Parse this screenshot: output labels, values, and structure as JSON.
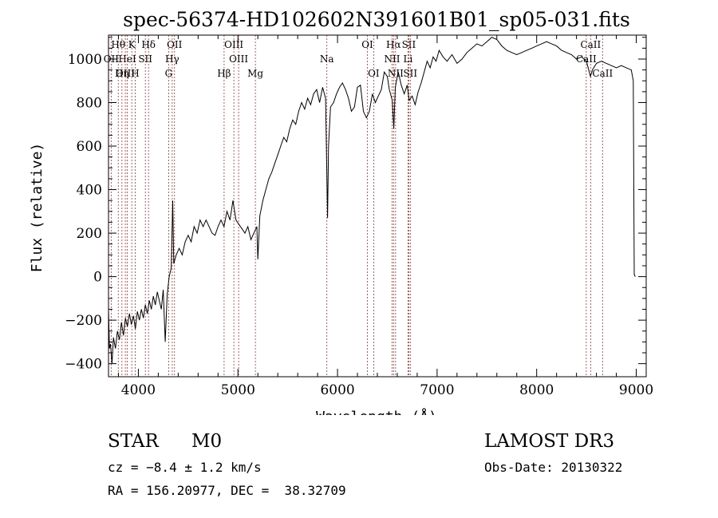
{
  "chart_data": {
    "type": "line",
    "title": "spec-56374-HD102602N391601B01_sp05-031.fits",
    "xlabel": "Wavelength (Å)",
    "ylabel": "Flux (relative)",
    "xlim": [
      3700,
      9100
    ],
    "ylim": [
      -460,
      1110
    ],
    "xticks": [
      4000,
      5000,
      6000,
      7000,
      8000,
      9000
    ],
    "yticks": [
      -400,
      -200,
      0,
      200,
      400,
      600,
      800,
      1000
    ],
    "series": [
      {
        "name": "spectrum",
        "points": [
          [
            3700,
            -150
          ],
          [
            3710,
            -330
          ],
          [
            3720,
            -310
          ],
          [
            3735,
            -400
          ],
          [
            3750,
            -280
          ],
          [
            3770,
            -330
          ],
          [
            3790,
            -250
          ],
          [
            3810,
            -290
          ],
          [
            3830,
            -210
          ],
          [
            3850,
            -270
          ],
          [
            3870,
            -190
          ],
          [
            3890,
            -230
          ],
          [
            3910,
            -170
          ],
          [
            3930,
            -220
          ],
          [
            3950,
            -180
          ],
          [
            3970,
            -240
          ],
          [
            3990,
            -160
          ],
          [
            4010,
            -200
          ],
          [
            4030,
            -150
          ],
          [
            4050,
            -190
          ],
          [
            4070,
            -130
          ],
          [
            4090,
            -170
          ],
          [
            4110,
            -110
          ],
          [
            4130,
            -150
          ],
          [
            4150,
            -90
          ],
          [
            4170,
            -130
          ],
          [
            4190,
            -70
          ],
          [
            4210,
            -110
          ],
          [
            4230,
            -150
          ],
          [
            4250,
            -60
          ],
          [
            4270,
            -300
          ],
          [
            4290,
            -80
          ],
          [
            4310,
            0
          ],
          [
            4330,
            40
          ],
          [
            4345,
            350
          ],
          [
            4355,
            60
          ],
          [
            4380,
            100
          ],
          [
            4410,
            130
          ],
          [
            4440,
            100
          ],
          [
            4470,
            160
          ],
          [
            4500,
            190
          ],
          [
            4530,
            160
          ],
          [
            4560,
            230
          ],
          [
            4590,
            200
          ],
          [
            4620,
            260
          ],
          [
            4650,
            230
          ],
          [
            4680,
            260
          ],
          [
            4710,
            230
          ],
          [
            4740,
            200
          ],
          [
            4770,
            190
          ],
          [
            4800,
            230
          ],
          [
            4830,
            260
          ],
          [
            4860,
            230
          ],
          [
            4890,
            300
          ],
          [
            4920,
            260
          ],
          [
            4950,
            350
          ],
          [
            4980,
            260
          ],
          [
            5010,
            240
          ],
          [
            5040,
            220
          ],
          [
            5070,
            200
          ],
          [
            5100,
            230
          ],
          [
            5130,
            170
          ],
          [
            5160,
            200
          ],
          [
            5190,
            230
          ],
          [
            5200,
            80
          ],
          [
            5220,
            280
          ],
          [
            5250,
            350
          ],
          [
            5280,
            400
          ],
          [
            5310,
            450
          ],
          [
            5340,
            480
          ],
          [
            5370,
            520
          ],
          [
            5400,
            560
          ],
          [
            5430,
            600
          ],
          [
            5460,
            640
          ],
          [
            5490,
            620
          ],
          [
            5520,
            680
          ],
          [
            5550,
            720
          ],
          [
            5580,
            700
          ],
          [
            5610,
            760
          ],
          [
            5640,
            800
          ],
          [
            5670,
            770
          ],
          [
            5700,
            820
          ],
          [
            5730,
            790
          ],
          [
            5760,
            840
          ],
          [
            5790,
            860
          ],
          [
            5820,
            800
          ],
          [
            5850,
            870
          ],
          [
            5880,
            820
          ],
          [
            5895,
            400
          ],
          [
            5900,
            270
          ],
          [
            5910,
            600
          ],
          [
            5930,
            780
          ],
          [
            5960,
            800
          ],
          [
            5990,
            840
          ],
          [
            6020,
            870
          ],
          [
            6050,
            890
          ],
          [
            6080,
            860
          ],
          [
            6110,
            820
          ],
          [
            6140,
            760
          ],
          [
            6170,
            780
          ],
          [
            6200,
            870
          ],
          [
            6230,
            880
          ],
          [
            6260,
            760
          ],
          [
            6290,
            730
          ],
          [
            6320,
            760
          ],
          [
            6350,
            840
          ],
          [
            6380,
            800
          ],
          [
            6410,
            830
          ],
          [
            6440,
            860
          ],
          [
            6470,
            940
          ],
          [
            6500,
            920
          ],
          [
            6520,
            860
          ],
          [
            6550,
            810
          ],
          [
            6565,
            680
          ],
          [
            6580,
            870
          ],
          [
            6610,
            940
          ],
          [
            6640,
            880
          ],
          [
            6670,
            840
          ],
          [
            6700,
            880
          ],
          [
            6720,
            810
          ],
          [
            6750,
            830
          ],
          [
            6780,
            790
          ],
          [
            6810,
            850
          ],
          [
            6840,
            890
          ],
          [
            6870,
            940
          ],
          [
            6900,
            990
          ],
          [
            6930,
            960
          ],
          [
            6960,
            1010
          ],
          [
            6990,
            990
          ],
          [
            7020,
            1040
          ],
          [
            7060,
            1010
          ],
          [
            7100,
            990
          ],
          [
            7150,
            1020
          ],
          [
            7200,
            980
          ],
          [
            7250,
            1000
          ],
          [
            7300,
            1030
          ],
          [
            7350,
            1050
          ],
          [
            7400,
            1070
          ],
          [
            7450,
            1060
          ],
          [
            7500,
            1080
          ],
          [
            7550,
            1100
          ],
          [
            7600,
            1090
          ],
          [
            7650,
            1060
          ],
          [
            7700,
            1040
          ],
          [
            7750,
            1030
          ],
          [
            7800,
            1020
          ],
          [
            7850,
            1030
          ],
          [
            7900,
            1040
          ],
          [
            7950,
            1050
          ],
          [
            8000,
            1060
          ],
          [
            8050,
            1070
          ],
          [
            8100,
            1080
          ],
          [
            8150,
            1070
          ],
          [
            8200,
            1060
          ],
          [
            8250,
            1040
          ],
          [
            8300,
            1030
          ],
          [
            8350,
            1020
          ],
          [
            8400,
            1000
          ],
          [
            8450,
            1010
          ],
          [
            8500,
            990
          ],
          [
            8540,
            920
          ],
          [
            8560,
            950
          ],
          [
            8600,
            980
          ],
          [
            8650,
            990
          ],
          [
            8700,
            980
          ],
          [
            8750,
            970
          ],
          [
            8800,
            960
          ],
          [
            8850,
            970
          ],
          [
            8900,
            960
          ],
          [
            8950,
            950
          ],
          [
            8970,
            900
          ],
          [
            8980,
            10
          ],
          [
            8990,
            0
          ]
        ]
      }
    ],
    "line_markers": [
      {
        "name": "Hθ",
        "wave": 3798,
        "row": 0
      },
      {
        "name": "K",
        "wave": 3934,
        "row": 0
      },
      {
        "name": "Hδ",
        "wave": 4102,
        "row": 0
      },
      {
        "name": "OII",
        "wave": 4363,
        "row": 0
      },
      {
        "name": "OIII",
        "wave": 4959,
        "row": 0
      },
      {
        "name": "OI",
        "wave": 6300,
        "row": 0
      },
      {
        "name": "Hα",
        "wave": 6563,
        "row": 0
      },
      {
        "name": "SII",
        "wave": 6716,
        "row": 0
      },
      {
        "name": "CaII",
        "wave": 8542,
        "row": 0
      },
      {
        "name": "OII",
        "wave": 3727,
        "row": 1
      },
      {
        "name": "HeI",
        "wave": 3889,
        "row": 1
      },
      {
        "name": "SII",
        "wave": 4070,
        "row": 1
      },
      {
        "name": "Hγ",
        "wave": 4340,
        "row": 1
      },
      {
        "name": "OIII",
        "wave": 5007,
        "row": 1
      },
      {
        "name": "Na",
        "wave": 5893,
        "row": 1
      },
      {
        "name": "NII",
        "wave": 6548,
        "row": 1
      },
      {
        "name": "Li",
        "wave": 6708,
        "row": 1
      },
      {
        "name": "CaII",
        "wave": 8498,
        "row": 1
      },
      {
        "name": "OIII",
        "wave": 3869,
        "row": 2
      },
      {
        "name": "Hη",
        "wave": 3835,
        "row": 2
      },
      {
        "name": "H",
        "wave": 3968,
        "row": 2
      },
      {
        "name": "G",
        "wave": 4304,
        "row": 2
      },
      {
        "name": "Hβ",
        "wave": 4861,
        "row": 2
      },
      {
        "name": "Mg",
        "wave": 5175,
        "row": 2
      },
      {
        "name": "OI",
        "wave": 6363,
        "row": 2
      },
      {
        "name": "NII",
        "wave": 6583,
        "row": 2
      },
      {
        "name": "SII",
        "wave": 6731,
        "row": 2
      },
      {
        "name": "CaII",
        "wave": 8662,
        "row": 2
      }
    ]
  },
  "info": {
    "object_class": "STAR",
    "subclass": "M0",
    "survey": "LAMOST DR3",
    "cz": "cz = −8.4 ± 1.2 km/s",
    "obs_date": "Obs-Date: 20130322",
    "coords": "RA = 156.20977, DEC =  38.32709"
  }
}
